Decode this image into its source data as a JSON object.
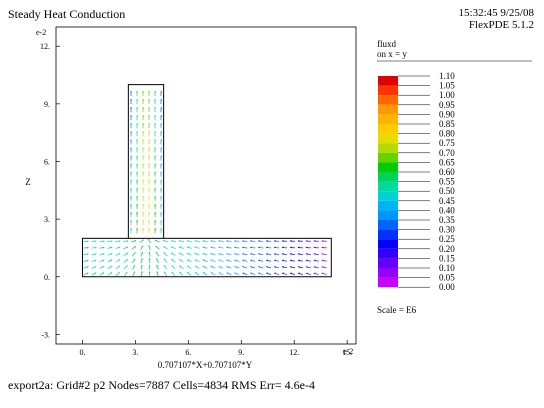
{
  "header": {
    "title": "Steady Heat Conduction",
    "timestamp": "15:32:45 9/25/08",
    "software": "FlexPDE 5.1.2"
  },
  "footer": {
    "status": "export2a:  Grid#2  p2  Nodes=7887 Cells=4834 RMS Err= 4.6e-4"
  },
  "chart_data": {
    "type": "vector-field",
    "xlabel": "0.707107*X+0.707107*Y",
    "ylabel": "Z",
    "x_exponent": "e-2",
    "y_exponent": "e-2",
    "xlim": [
      -1.5,
      15.5
    ],
    "ylim": [
      -3.5,
      13
    ],
    "x_ticks": [
      0,
      3,
      6,
      9,
      12,
      15
    ],
    "x_tick_labels": [
      "0.",
      "3.",
      "6.",
      "9.",
      "12.",
      "15."
    ],
    "y_ticks": [
      -3,
      0,
      3,
      6,
      9,
      12
    ],
    "y_tick_labels": [
      "-3.",
      "0.",
      "3.",
      "6.",
      "9.",
      "12."
    ],
    "geometry": {
      "base": {
        "x": [
          0,
          14.1
        ],
        "z": [
          0,
          2
        ]
      },
      "fin": {
        "x": [
          2.6,
          4.6
        ],
        "z": [
          2,
          10
        ]
      }
    },
    "legend": {
      "title": "fluxd",
      "subtitle": "on x = y",
      "levels": [
        1.1,
        1.05,
        1.0,
        0.95,
        0.9,
        0.85,
        0.8,
        0.75,
        0.7,
        0.65,
        0.6,
        0.55,
        0.5,
        0.45,
        0.4,
        0.35,
        0.3,
        0.25,
        0.2,
        0.15,
        0.1,
        0.05,
        0.0
      ],
      "labels": [
        "1.10",
        "1.05",
        "1.00",
        "0.95",
        "0.90",
        "0.85",
        "0.80",
        "0.75",
        "0.70",
        "0.65",
        "0.60",
        "0.55",
        "0.50",
        "0.45",
        "0.40",
        "0.35",
        "0.30",
        "0.25",
        "0.20",
        "0.15",
        "0.10",
        "0.05",
        "0.00"
      ],
      "colors": [
        "#e10000",
        "#ff3300",
        "#ff6600",
        "#ff9900",
        "#ffb400",
        "#ffcc00",
        "#e6dc00",
        "#b4dc00",
        "#66d200",
        "#00cc00",
        "#00d25a",
        "#00dca0",
        "#00d2d2",
        "#00b4f0",
        "#0096ff",
        "#0064ff",
        "#0032ff",
        "#0000ff",
        "#3200ff",
        "#6400ff",
        "#9600ff",
        "#c800ff",
        "#ff00ff"
      ],
      "scale": "Scale = E6"
    }
  }
}
